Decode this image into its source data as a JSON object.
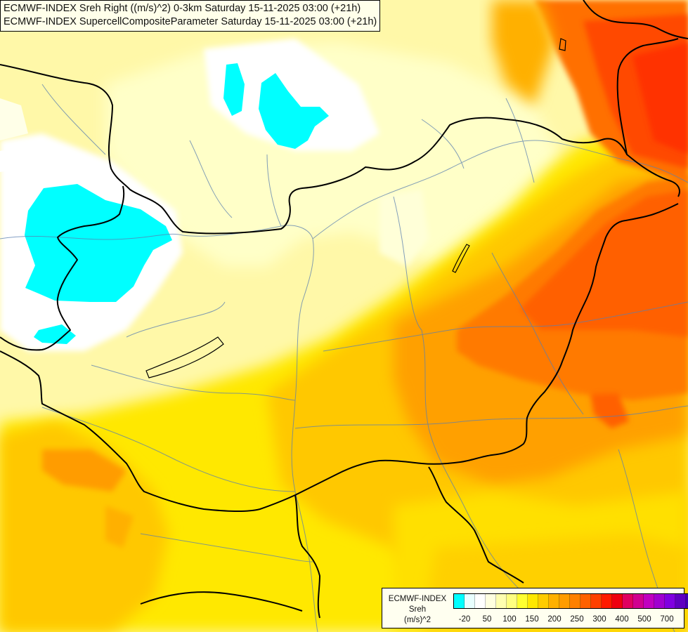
{
  "title": {
    "line1": "ECMWF-INDEX Sreh Right ((m/s)^2) 0-3km Saturday 15-11-2025 03:00 (+21h)",
    "line2": "ECMWF-INDEX SupercellCompositeParameter Saturday 15-11-2025 03:00 (+21h)"
  },
  "legend": {
    "line1": "ECMWF-INDEX",
    "line2": "Sreh",
    "line3": "(m/s)^2",
    "colors": [
      "#00ffff",
      "#e8ffff",
      "#ffffff",
      "#ffffe0",
      "#ffffb0",
      "#ffff80",
      "#ffff30",
      "#ffe800",
      "#ffcc00",
      "#ffb000",
      "#ff9c00",
      "#ff8000",
      "#ff6000",
      "#ff4000",
      "#ff1a00",
      "#ee0010",
      "#e00060",
      "#d00090",
      "#c000c0",
      "#a000d0",
      "#8000e0",
      "#6000c0",
      "#4000b0",
      "#200090"
    ],
    "ticks": [
      "-20",
      "50",
      "100",
      "150",
      "200",
      "250",
      "300",
      "400",
      "500",
      "700"
    ]
  }
}
